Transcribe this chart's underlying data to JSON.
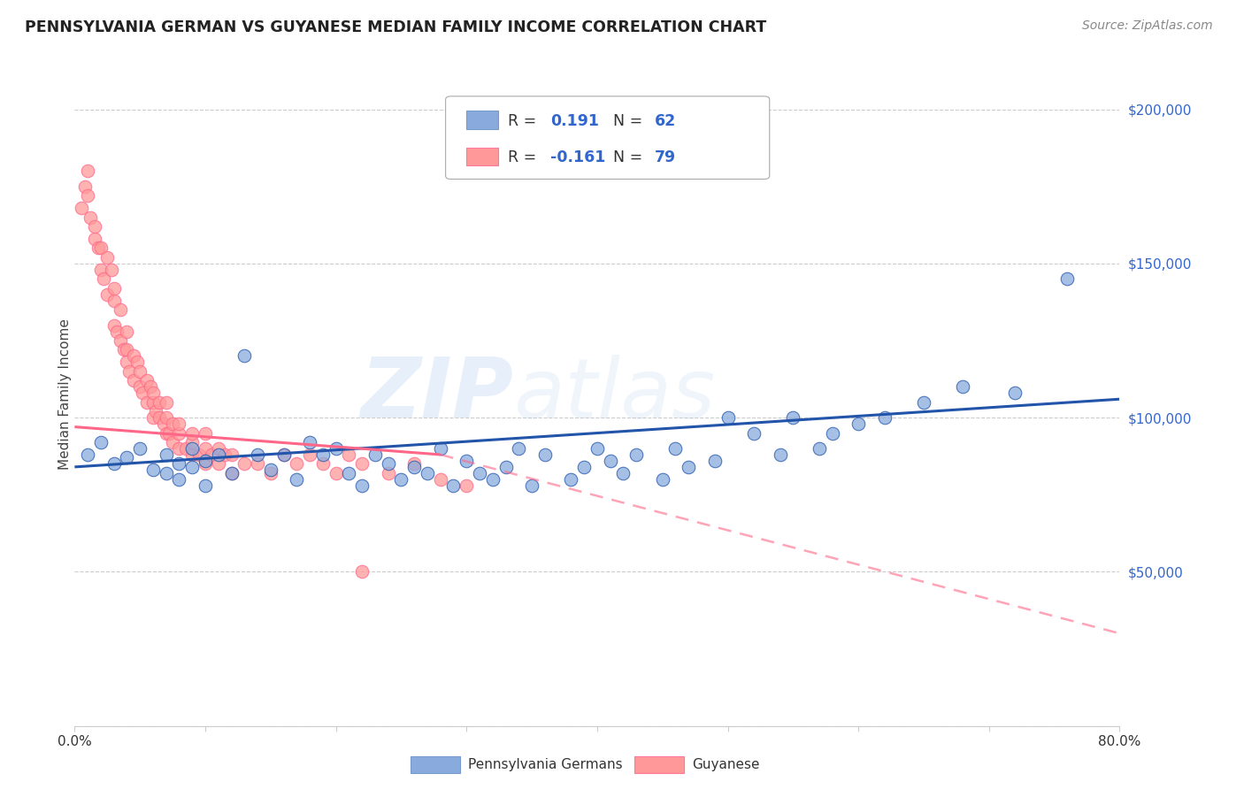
{
  "title": "PENNSYLVANIA GERMAN VS GUYANESE MEDIAN FAMILY INCOME CORRELATION CHART",
  "source": "Source: ZipAtlas.com",
  "ylabel": "Median Family Income",
  "legend_label1": "Pennsylvania Germans",
  "legend_label2": "Guyanese",
  "r1": 0.191,
  "n1": 62,
  "r2": -0.161,
  "n2": 79,
  "color_blue": "#88AADD",
  "color_pink": "#FF9999",
  "color_blue_line": "#2255AA",
  "color_pink_line": "#FF6688",
  "color_blue_text": "#3366CC",
  "watermark": "ZIPatlas",
  "blue_scatter_x": [
    0.01,
    0.02,
    0.03,
    0.04,
    0.05,
    0.06,
    0.07,
    0.07,
    0.08,
    0.08,
    0.09,
    0.09,
    0.1,
    0.1,
    0.11,
    0.12,
    0.13,
    0.14,
    0.15,
    0.16,
    0.17,
    0.18,
    0.19,
    0.2,
    0.21,
    0.22,
    0.23,
    0.24,
    0.25,
    0.26,
    0.27,
    0.28,
    0.29,
    0.3,
    0.31,
    0.32,
    0.33,
    0.34,
    0.35,
    0.36,
    0.38,
    0.39,
    0.4,
    0.41,
    0.42,
    0.43,
    0.45,
    0.46,
    0.47,
    0.49,
    0.5,
    0.52,
    0.54,
    0.55,
    0.57,
    0.58,
    0.6,
    0.62,
    0.65,
    0.68,
    0.72,
    0.76
  ],
  "blue_scatter_y": [
    88000,
    92000,
    85000,
    87000,
    90000,
    83000,
    82000,
    88000,
    85000,
    80000,
    84000,
    90000,
    78000,
    86000,
    88000,
    82000,
    120000,
    88000,
    83000,
    88000,
    80000,
    92000,
    88000,
    90000,
    82000,
    78000,
    88000,
    85000,
    80000,
    84000,
    82000,
    90000,
    78000,
    86000,
    82000,
    80000,
    84000,
    90000,
    78000,
    88000,
    80000,
    84000,
    90000,
    86000,
    82000,
    88000,
    80000,
    90000,
    84000,
    86000,
    100000,
    95000,
    88000,
    100000,
    90000,
    95000,
    98000,
    100000,
    105000,
    110000,
    108000,
    145000
  ],
  "pink_scatter_x": [
    0.005,
    0.008,
    0.01,
    0.01,
    0.012,
    0.015,
    0.015,
    0.018,
    0.02,
    0.02,
    0.022,
    0.025,
    0.025,
    0.028,
    0.03,
    0.03,
    0.03,
    0.032,
    0.035,
    0.035,
    0.038,
    0.04,
    0.04,
    0.04,
    0.042,
    0.045,
    0.045,
    0.048,
    0.05,
    0.05,
    0.052,
    0.055,
    0.055,
    0.058,
    0.06,
    0.06,
    0.06,
    0.062,
    0.065,
    0.065,
    0.068,
    0.07,
    0.07,
    0.07,
    0.072,
    0.075,
    0.075,
    0.08,
    0.08,
    0.08,
    0.085,
    0.09,
    0.09,
    0.09,
    0.095,
    0.1,
    0.1,
    0.1,
    0.105,
    0.11,
    0.11,
    0.115,
    0.12,
    0.12,
    0.13,
    0.14,
    0.15,
    0.16,
    0.17,
    0.18,
    0.19,
    0.2,
    0.21,
    0.22,
    0.24,
    0.26,
    0.28,
    0.3,
    0.22
  ],
  "pink_scatter_y": [
    168000,
    175000,
    172000,
    180000,
    165000,
    158000,
    162000,
    155000,
    148000,
    155000,
    145000,
    152000,
    140000,
    148000,
    130000,
    138000,
    142000,
    128000,
    135000,
    125000,
    122000,
    118000,
    128000,
    122000,
    115000,
    120000,
    112000,
    118000,
    110000,
    115000,
    108000,
    112000,
    105000,
    110000,
    100000,
    105000,
    108000,
    102000,
    100000,
    105000,
    98000,
    95000,
    100000,
    105000,
    95000,
    98000,
    92000,
    95000,
    90000,
    98000,
    90000,
    88000,
    92000,
    95000,
    88000,
    85000,
    90000,
    95000,
    88000,
    90000,
    85000,
    88000,
    82000,
    88000,
    85000,
    85000,
    82000,
    88000,
    85000,
    88000,
    85000,
    82000,
    88000,
    85000,
    82000,
    85000,
    80000,
    78000,
    50000
  ],
  "blue_line_x0": 0.0,
  "blue_line_x1": 0.8,
  "blue_line_y0": 84000,
  "blue_line_y1": 106000,
  "pink_line_solid_x0": 0.0,
  "pink_line_solid_x1": 0.28,
  "pink_line_solid_y0": 97000,
  "pink_line_solid_y1": 88000,
  "pink_line_dash_x0": 0.28,
  "pink_line_dash_x1": 0.8,
  "pink_line_dash_y0": 88000,
  "pink_line_dash_y1": 30000,
  "xlim": [
    0.0,
    0.8
  ],
  "ylim": [
    0,
    215000
  ],
  "yticks": [
    0,
    50000,
    100000,
    150000,
    200000
  ],
  "ytick_labels": [
    "",
    "$50,000",
    "$100,000",
    "$150,000",
    "$200,000"
  ]
}
